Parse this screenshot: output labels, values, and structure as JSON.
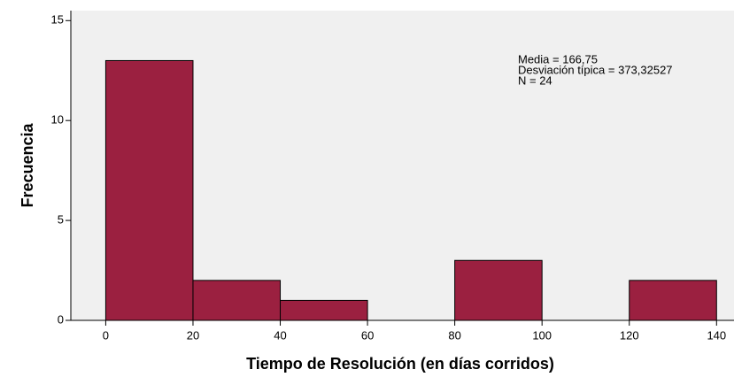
{
  "chart_data": {
    "type": "histogram",
    "bins": [
      0,
      20,
      40,
      60,
      80,
      100,
      120,
      140
    ],
    "values": [
      13,
      2,
      1,
      0,
      3,
      0,
      2
    ],
    "color": "#9b2040",
    "xlabel": "Tiempo de Resolución (en días corridos)",
    "ylabel": "Frecuencia",
    "xlim": [
      -8,
      144
    ],
    "ylim": [
      0,
      15.5
    ],
    "xticks": [
      0,
      20,
      40,
      60,
      80,
      100,
      120,
      140
    ],
    "yticks": [
      0,
      5,
      10,
      15
    ],
    "annotations": [
      "Media = 166,75",
      "Desviación típica = 373,32527",
      "N = 24"
    ]
  }
}
